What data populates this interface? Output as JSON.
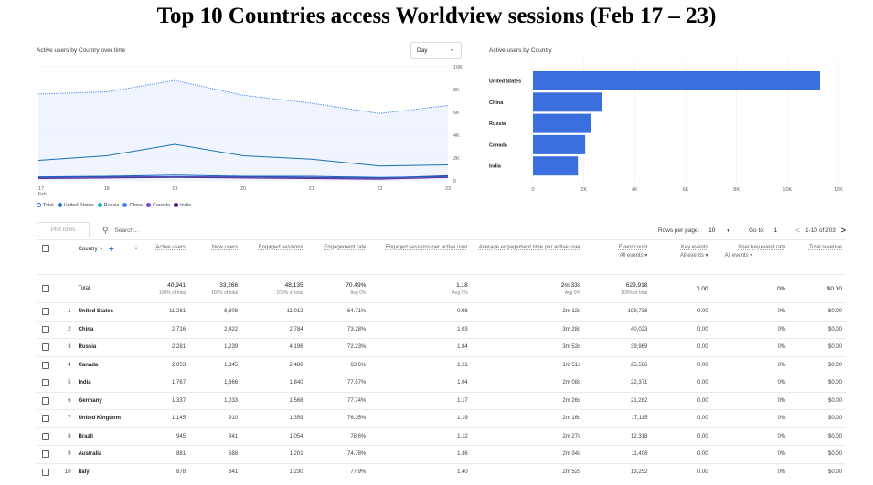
{
  "title": "Top 10 Countries access Worldview sessions (Feb 17 – 23)",
  "line_chart": {
    "panel_title": "Active users by Country over time",
    "range_select": "Day",
    "y_ticks": [
      "10K",
      "8K",
      "6K",
      "4K",
      "2K",
      "0"
    ],
    "x_ticks": [
      "17",
      "18",
      "19",
      "20",
      "21",
      "22",
      "23"
    ],
    "x_month": "Feb",
    "legend": [
      {
        "name": "Total",
        "color": "#1a73e8",
        "hollow": true
      },
      {
        "name": "United States",
        "color": "#1a73e8"
      },
      {
        "name": "Russia",
        "color": "#12b5cb"
      },
      {
        "name": "China",
        "color": "#4285f4"
      },
      {
        "name": "Canada",
        "color": "#7b3fe4"
      },
      {
        "name": "India",
        "color": "#5b0a91"
      }
    ],
    "colors": {
      "total": "#4a86e8",
      "us": "#1f6fb3",
      "russia": "#3949ab",
      "china": "#1565c0",
      "canada": "#7e57c2",
      "india": "#4a148c",
      "fill": "#e8f0fe"
    },
    "series": {
      "total": [
        7600,
        7800,
        8800,
        7500,
        6800,
        5900,
        6600
      ],
      "us": [
        1800,
        2200,
        3200,
        2200,
        1900,
        1300,
        1400
      ],
      "china": [
        350,
        400,
        500,
        400,
        400,
        300,
        380
      ],
      "russia": [
        300,
        350,
        350,
        350,
        300,
        250,
        450
      ],
      "canada": [
        250,
        300,
        350,
        300,
        250,
        200,
        350
      ],
      "india": [
        200,
        250,
        300,
        250,
        200,
        150,
        300
      ]
    },
    "y_max": 10000
  },
  "bar_chart": {
    "panel_title": "Active users by Country",
    "categories": [
      "United States",
      "China",
      "Russia",
      "Canada",
      "India"
    ],
    "values": [
      11281,
      2716,
      2281,
      2053,
      1767
    ],
    "x_ticks": [
      "0",
      "2K",
      "4K",
      "6K",
      "8K",
      "10K",
      "12K"
    ],
    "x_max": 12000,
    "color": "#3b6fde"
  },
  "toolbar": {
    "plot_rows": "Plot rows",
    "search_placeholder": "Search...",
    "rows_per_page_label": "Rows per page:",
    "rows_per_page": "10",
    "goto_label": "Go to:",
    "goto_value": "1",
    "range": "1-10 of 203"
  },
  "table": {
    "headers": {
      "country": "Country",
      "active_users": "Active users",
      "new_users": "New users",
      "engaged_sessions": "Engaged sessions",
      "engagement_rate": "Engagement rate",
      "engaged_per_user": "Engaged sessions per active user",
      "avg_engagement": "Average engagement time per active user",
      "event_count": "Event count",
      "key_events": "Key events",
      "user_key_event_rate": "User key event rate",
      "total_revenue": "Total revenue",
      "all_events": "All events"
    },
    "total": {
      "label": "Total",
      "active_users": "40,941",
      "active_users_sub": "100% of total",
      "new_users": "33,266",
      "new_users_sub": "100% of total",
      "engaged_sessions": "48,135",
      "engaged_sessions_sub": "100% of total",
      "engagement_rate": "70.49%",
      "engagement_rate_sub": "Avg 0%",
      "engaged_per_user": "1.18",
      "engaged_per_user_sub": "Avg 0%",
      "avg_engagement": "2m 33s",
      "avg_engagement_sub": "Avg 0%",
      "event_count": "629,918",
      "event_count_sub": "100% of total",
      "key_events": "0.00",
      "user_key_event_rate": "0%",
      "total_revenue": "$0.00"
    },
    "rows": [
      {
        "idx": "1",
        "country": "United States",
        "active": "11,281",
        "new": "8,808",
        "engaged": "11,012",
        "rate": "64.71%",
        "per_user": "0.98",
        "avg": "2m 12s",
        "events": "199,736",
        "key": "0.00",
        "ukr": "0%",
        "rev": "$0.00"
      },
      {
        "idx": "2",
        "country": "China",
        "active": "2,716",
        "new": "2,422",
        "engaged": "2,784",
        "rate": "73.28%",
        "per_user": "1.03",
        "avg": "3m 28s",
        "events": "40,023",
        "key": "0.00",
        "ukr": "0%",
        "rev": "$0.00"
      },
      {
        "idx": "3",
        "country": "Russia",
        "active": "2,281",
        "new": "1,239",
        "engaged": "4,196",
        "rate": "72.23%",
        "per_user": "1.84",
        "avg": "3m 53s",
        "events": "39,969",
        "key": "0.00",
        "ukr": "0%",
        "rev": "$0.00"
      },
      {
        "idx": "4",
        "country": "Canada",
        "active": "2,053",
        "new": "1,345",
        "engaged": "2,488",
        "rate": "63.6%",
        "per_user": "1.21",
        "avg": "1m 51s",
        "events": "25,586",
        "key": "0.00",
        "ukr": "0%",
        "rev": "$0.00"
      },
      {
        "idx": "5",
        "country": "India",
        "active": "1,767",
        "new": "1,666",
        "engaged": "1,840",
        "rate": "77.57%",
        "per_user": "1.04",
        "avg": "2m 08s",
        "events": "22,371",
        "key": "0.00",
        "ukr": "0%",
        "rev": "$0.00"
      },
      {
        "idx": "6",
        "country": "Germany",
        "active": "1,337",
        "new": "1,033",
        "engaged": "1,568",
        "rate": "77.74%",
        "per_user": "1.17",
        "avg": "2m 26s",
        "events": "21,282",
        "key": "0.00",
        "ukr": "0%",
        "rev": "$0.00"
      },
      {
        "idx": "7",
        "country": "United Kingdom",
        "active": "1,145",
        "new": "910",
        "engaged": "1,359",
        "rate": "76.35%",
        "per_user": "1.19",
        "avg": "2m 16s",
        "events": "17,115",
        "key": "0.00",
        "ukr": "0%",
        "rev": "$0.00"
      },
      {
        "idx": "8",
        "country": "Brazil",
        "active": "945",
        "new": "841",
        "engaged": "1,054",
        "rate": "78.6%",
        "per_user": "1.12",
        "avg": "2m 27s",
        "events": "12,318",
        "key": "0.00",
        "ukr": "0%",
        "rev": "$0.00"
      },
      {
        "idx": "9",
        "country": "Australia",
        "active": "881",
        "new": "688",
        "engaged": "1,201",
        "rate": "74.78%",
        "per_user": "1.36",
        "avg": "2m 34s",
        "events": "11,406",
        "key": "0.00",
        "ukr": "0%",
        "rev": "$0.00"
      },
      {
        "idx": "10",
        "country": "Italy",
        "active": "878",
        "new": "641",
        "engaged": "1,230",
        "rate": "77.9%",
        "per_user": "1.40",
        "avg": "2m 52s",
        "events": "13,252",
        "key": "0.00",
        "ukr": "0%",
        "rev": "$0.00"
      }
    ]
  }
}
